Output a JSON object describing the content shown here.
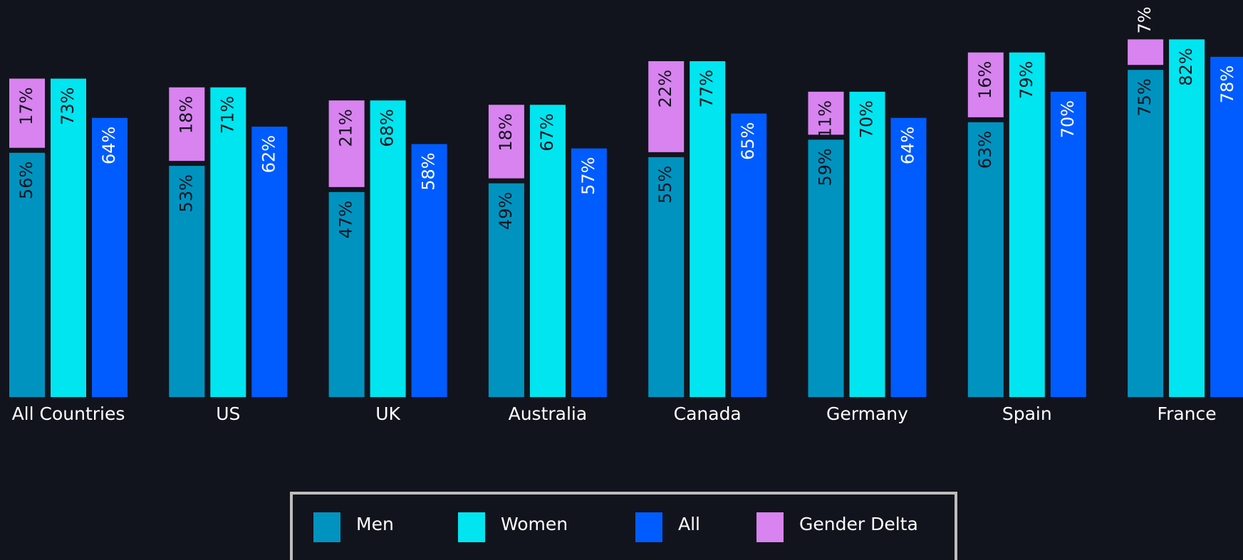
{
  "chart_data": {
    "type": "bar",
    "categories": [
      "All Countries",
      "US",
      "UK",
      "Australia",
      "Canada",
      "Germany",
      "Spain",
      "France"
    ],
    "series": [
      {
        "name": "Men",
        "color": "#0093c0",
        "values": [
          56,
          53,
          47,
          49,
          55,
          59,
          63,
          75
        ],
        "value_labels": [
          "56%",
          "53%",
          "47%",
          "49%",
          "55%",
          "59%",
          "63%",
          "75%"
        ]
      },
      {
        "name": "Women",
        "color": "#00e5ef",
        "values": [
          73,
          71,
          68,
          67,
          77,
          70,
          79,
          82
        ],
        "value_labels": [
          "73%",
          "71%",
          "68%",
          "67%",
          "77%",
          "70%",
          "79%",
          "82%"
        ]
      },
      {
        "name": "All",
        "color": "#005cff",
        "values": [
          64,
          62,
          58,
          57,
          65,
          64,
          70,
          78
        ],
        "value_labels": [
          "64%",
          "62%",
          "58%",
          "57%",
          "65%",
          "64%",
          "70%",
          "78%"
        ]
      },
      {
        "name": "Gender Delta",
        "color": "#d883f0",
        "stack": "Men",
        "values": [
          17,
          18,
          21,
          18,
          22,
          11,
          16,
          7
        ],
        "value_labels": [
          "17%",
          "18%",
          "21%",
          "18%",
          "22%",
          "11%",
          "16%",
          "7%"
        ]
      }
    ],
    "ylim": [
      0,
      100
    ],
    "legend": "bottom"
  }
}
